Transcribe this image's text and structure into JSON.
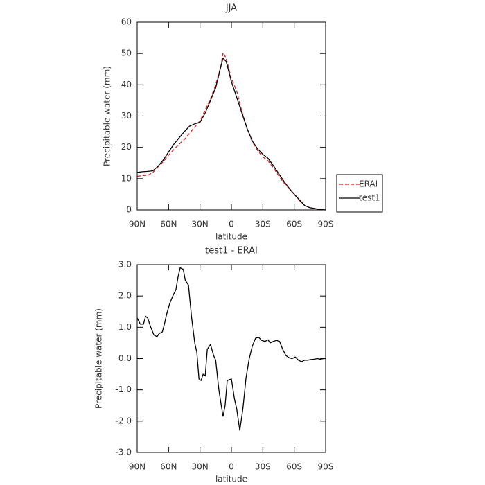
{
  "chart_data": [
    {
      "type": "line",
      "title": "JJA",
      "xlabel": "latitude",
      "ylabel": "Precipitable water (mm)",
      "x": [
        90,
        85,
        80,
        75,
        70,
        65,
        60,
        55,
        50,
        45,
        40,
        35,
        30,
        25,
        20,
        15,
        10,
        8,
        5,
        0,
        -5,
        -10,
        -15,
        -20,
        -25,
        -30,
        -35,
        -40,
        -45,
        -50,
        -55,
        -60,
        -65,
        -70,
        -75,
        -80,
        -85,
        -90
      ],
      "series": [
        {
          "name": "ERAI",
          "color": "#e02020",
          "style": "dashed",
          "values": [
            10.7,
            11,
            11,
            12,
            13.8,
            15.5,
            17.5,
            19.3,
            21,
            22.5,
            24.5,
            26.5,
            28.5,
            32,
            35.5,
            40,
            46,
            50.3,
            48.5,
            42,
            38,
            31.5,
            26,
            21.8,
            19,
            17,
            15.7,
            13.5,
            11,
            8.7,
            6.8,
            5,
            3,
            1.4,
            0.7,
            0.4,
            0.1,
            0
          ]
        },
        {
          "name": "test1",
          "color": "#000000",
          "style": "solid",
          "values": [
            12,
            12.2,
            12.3,
            12.5,
            14,
            16,
            18.5,
            21,
            23,
            25,
            26.8,
            27.5,
            28,
            31,
            35,
            39,
            46,
            48.5,
            47.5,
            41,
            36,
            31,
            26,
            22,
            19.5,
            17.8,
            16.5,
            14.2,
            11.7,
            9.2,
            7,
            5,
            3.2,
            1.4,
            0.7,
            0.4,
            0.1,
            0
          ]
        }
      ],
      "xlim": [
        90,
        -90
      ],
      "xticks": [
        {
          "value": 90,
          "label": "90N"
        },
        {
          "value": 60,
          "label": "60N"
        },
        {
          "value": 30,
          "label": "30N"
        },
        0,
        {
          "value": -30,
          "label": "30S"
        },
        {
          "value": -60,
          "label": "60S"
        },
        {
          "value": -90,
          "label": "90S"
        }
      ],
      "ylim": [
        0,
        60
      ],
      "yticks": [
        0,
        10,
        20,
        30,
        40,
        50,
        60
      ],
      "legend": "right"
    },
    {
      "type": "line",
      "title": "test1 - ERAI",
      "xlabel": "latitude",
      "ylabel": "Precipitable water (mm)",
      "x": [
        90,
        87,
        84,
        82,
        80,
        77,
        74,
        71,
        69,
        66,
        64,
        62,
        59,
        56,
        53,
        51,
        49,
        46,
        44,
        41,
        38,
        35,
        33,
        31,
        29,
        27,
        25,
        23,
        20,
        17,
        15,
        12,
        8,
        6,
        4,
        0,
        -3,
        -5,
        -8,
        -11,
        -14,
        -17,
        -20,
        -23,
        -26,
        -29,
        -32,
        -35,
        -37,
        -40,
        -43,
        -46,
        -49,
        -52,
        -55,
        -58,
        -61,
        -64,
        -67,
        -70,
        -73,
        -76,
        -79,
        -82,
        -85,
        -88,
        -90
      ],
      "series": [
        {
          "color": "#000000",
          "style": "solid",
          "values": [
            1.3,
            1.1,
            1.1,
            1.35,
            1.3,
            1.0,
            0.75,
            0.7,
            0.8,
            0.85,
            1.1,
            1.4,
            1.75,
            2.0,
            2.2,
            2.6,
            2.9,
            2.85,
            2.5,
            2.35,
            1.3,
            0.5,
            0.2,
            -0.65,
            -0.7,
            -0.5,
            -0.55,
            0.3,
            0.45,
            0.1,
            -0.05,
            -1.0,
            -1.85,
            -1.5,
            -0.7,
            -0.65,
            -1.3,
            -1.6,
            -2.3,
            -1.6,
            -0.6,
            0.0,
            0.4,
            0.65,
            0.68,
            0.58,
            0.55,
            0.6,
            0.5,
            0.55,
            0.58,
            0.55,
            0.3,
            0.1,
            0.03,
            0.0,
            0.05,
            -0.05,
            -0.1,
            -0.05,
            -0.05,
            -0.03,
            -0.02,
            0,
            -0.02,
            0,
            0
          ]
        }
      ],
      "xlim": [
        90,
        -90
      ],
      "xticks": [
        {
          "value": 90,
          "label": "90N"
        },
        {
          "value": 60,
          "label": "60N"
        },
        {
          "value": 30,
          "label": "30N"
        },
        0,
        {
          "value": -30,
          "label": "30S"
        },
        {
          "value": -60,
          "label": "60S"
        },
        {
          "value": -90,
          "label": "90S"
        }
      ],
      "ylim": [
        -3,
        3
      ],
      "yticks": [
        {
          "value": -3,
          "label": "-3.0"
        },
        {
          "value": -2,
          "label": "-2.0"
        },
        {
          "value": -1,
          "label": "-1.0"
        },
        {
          "value": 0,
          "label": "0.0"
        },
        {
          "value": 1,
          "label": "1.0"
        },
        {
          "value": 2,
          "label": "2.0"
        },
        {
          "value": 3,
          "label": "3.0"
        }
      ]
    }
  ]
}
